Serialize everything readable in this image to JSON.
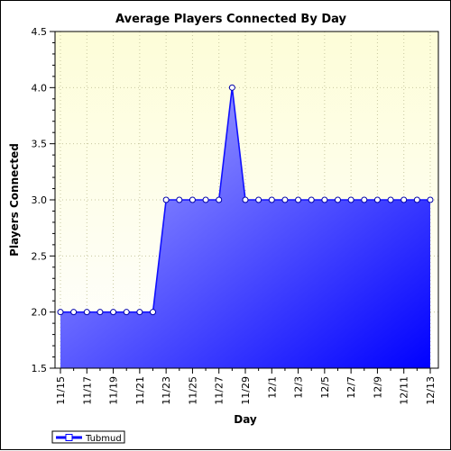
{
  "chart_data": {
    "type": "area",
    "title": "Average Players Connected By Day",
    "xlabel": "Day",
    "ylabel": "Players Connected",
    "ylim": [
      1.5,
      4.5
    ],
    "yticks": [
      "1.5",
      "2.0",
      "2.5",
      "3.0",
      "3.5",
      "4.0",
      "4.5"
    ],
    "grid": true,
    "legend_position": "bottom-left",
    "x": [
      "11/15",
      "11/16",
      "11/17",
      "11/18",
      "11/19",
      "11/20",
      "11/21",
      "11/22",
      "11/23",
      "11/24",
      "11/25",
      "11/26",
      "11/27",
      "11/28",
      "11/29",
      "11/30",
      "12/1",
      "12/2",
      "12/3",
      "12/4",
      "12/5",
      "12/6",
      "12/7",
      "12/8",
      "12/9",
      "12/10",
      "12/11",
      "12/12",
      "12/13"
    ],
    "xtick_labels": [
      "11/15",
      "11/17",
      "11/19",
      "11/21",
      "11/23",
      "11/25",
      "11/27",
      "11/29",
      "12/1",
      "12/3",
      "12/5",
      "12/7",
      "12/9",
      "12/11",
      "12/13"
    ],
    "series": [
      {
        "name": "Tubmud",
        "values": [
          2.0,
          2.0,
          2.0,
          2.0,
          2.0,
          2.0,
          2.0,
          2.0,
          3.0,
          3.0,
          3.0,
          3.0,
          3.0,
          4.0,
          3.0,
          3.0,
          3.0,
          3.0,
          3.0,
          3.0,
          3.0,
          3.0,
          3.0,
          3.0,
          3.0,
          3.0,
          3.0,
          3.0,
          3.0
        ],
        "color": "#0000ff"
      }
    ],
    "colors": {
      "plot_background_top": "#fdfdd8",
      "plot_background_bottom": "#ffffff",
      "fill_light": "#b4b4ff",
      "fill_dark": "#0000ff",
      "line": "#1010ff",
      "grid": "#c8c8a0"
    }
  }
}
